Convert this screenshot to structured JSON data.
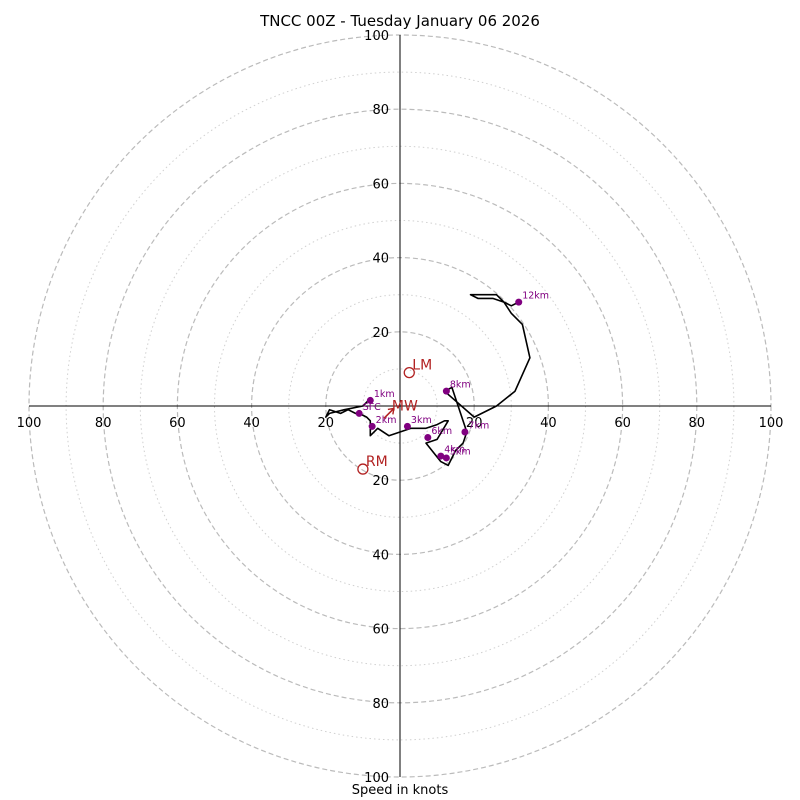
{
  "chart_data": {
    "type": "hodograph",
    "title": "TNCC 00Z - Tuesday January 06 2026",
    "xlabel": "Speed in knots",
    "ylabel": "",
    "max_speed": 100,
    "rings_major": [
      20,
      40,
      60,
      80,
      100
    ],
    "rings_minor": [
      10,
      30,
      50,
      70,
      90
    ],
    "axis_tick_values": [
      20,
      40,
      60,
      80,
      100
    ],
    "axis_tick_labels": [
      "20",
      "40",
      "60",
      "80",
      "100"
    ],
    "profile": {
      "u": [
        -8,
        -10,
        -15,
        -19,
        -20,
        -19,
        -16,
        -14,
        -12,
        -11,
        -9,
        -8,
        -8,
        -6,
        -3,
        0,
        3,
        7,
        10,
        12,
        13,
        10,
        7,
        11,
        13,
        15,
        17,
        18,
        14,
        12,
        20,
        26,
        31,
        35,
        33,
        30,
        28,
        26,
        21,
        19,
        21,
        25,
        28,
        30,
        32
      ],
      "v": [
        2,
        0,
        -1,
        -2,
        -3,
        -1,
        -2,
        -1,
        -2,
        -2,
        -3,
        -4,
        -8,
        -6,
        -8,
        -7,
        -6,
        -6,
        -5,
        -4,
        -4,
        -9,
        -10,
        -15,
        -16,
        -12,
        -10,
        -7,
        5,
        4,
        -3,
        0,
        4,
        13,
        22,
        25,
        28,
        30,
        30,
        30,
        29,
        29,
        28,
        27,
        28
      ]
    },
    "height_markers": [
      {
        "label": "1km",
        "u": -8,
        "v": 1.5
      },
      {
        "label": "2km",
        "u": -7.5,
        "v": -5.5
      },
      {
        "label": "3km",
        "u": 2,
        "v": -5.5
      },
      {
        "label": "4km",
        "u": 11,
        "v": -13.5
      },
      {
        "label": "5km",
        "u": 12.5,
        "v": -14
      },
      {
        "label": "6km",
        "u": 7.5,
        "v": -8.5
      },
      {
        "label": "7km",
        "u": 17.5,
        "v": -7
      },
      {
        "label": "8km",
        "u": 12.5,
        "v": 4
      },
      {
        "label": "12km",
        "u": 32,
        "v": 28
      },
      {
        "label": "SFC",
        "u": -11,
        "v": -2
      }
    ],
    "storm_motions": [
      {
        "label": "LM",
        "u": 2.5,
        "v": 9
      },
      {
        "label": "RM",
        "u": -10,
        "v": -17
      },
      {
        "label": "MW",
        "u": -3,
        "v": -2
      }
    ],
    "colors": {
      "profile": "#000000",
      "markers": "#800080",
      "storm_motion": "#b22222",
      "rings": "#bbbbbb"
    }
  }
}
